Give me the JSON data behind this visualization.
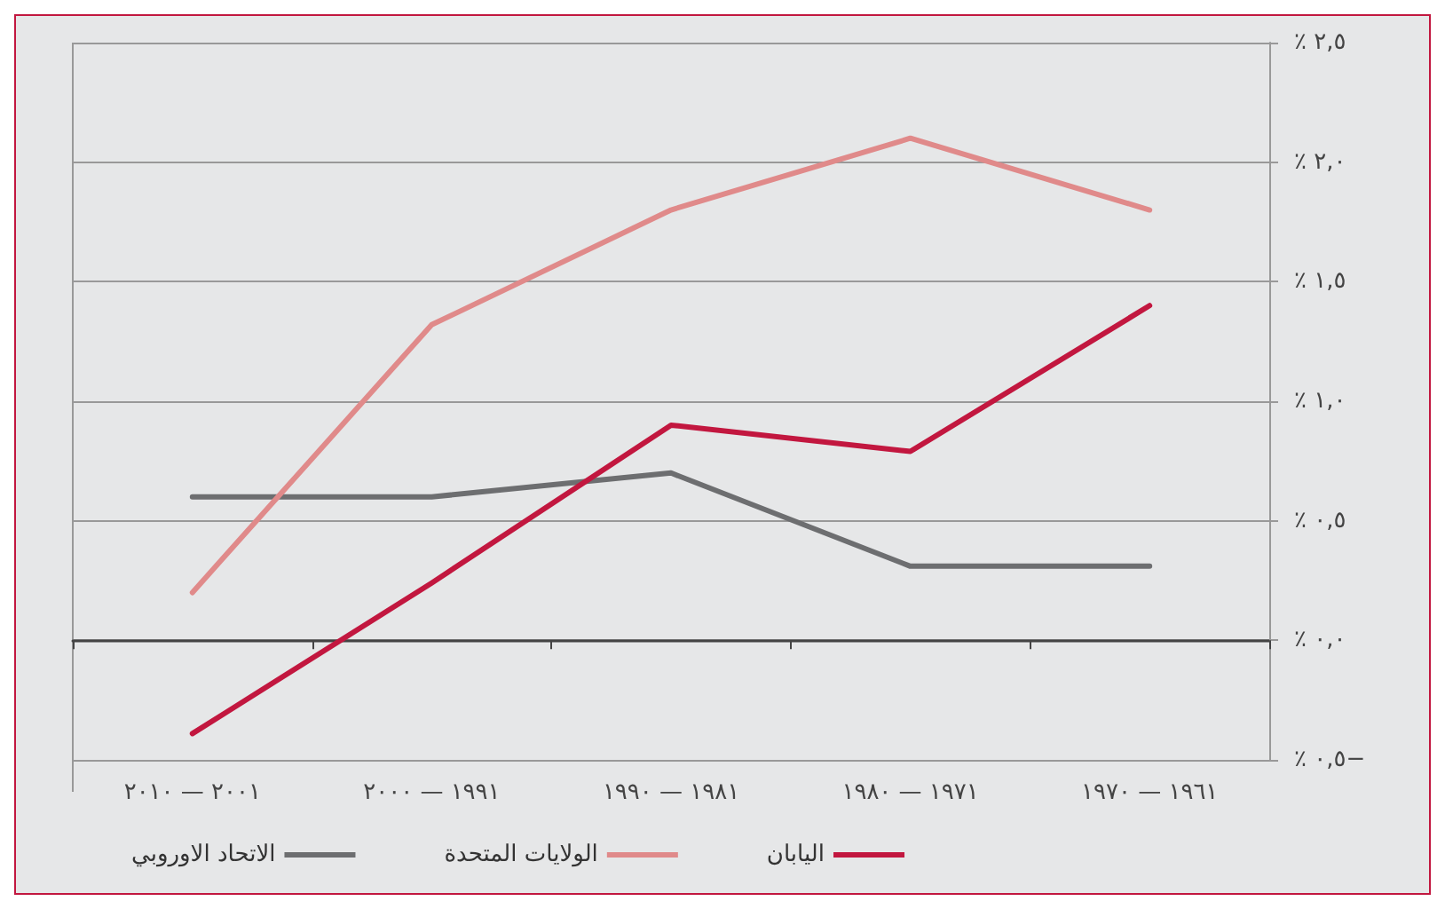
{
  "chart_data": {
    "type": "line",
    "categories": [
      "٢٠٠١ — ٢٠١٠",
      "١٩٩١ — ٢٠٠٠",
      "١٩٨١ — ١٩٩٠",
      "١٩٧١ — ١٩٨٠",
      "١٩٦١ — ١٩٧٠"
    ],
    "series": [
      {
        "name": "الاتحاد الاوروبي",
        "color": "#6d6e70",
        "values": [
          0.6,
          0.6,
          0.7,
          0.31,
          0.31
        ]
      },
      {
        "name": "الولايات المتحدة",
        "color": "#e08a8a",
        "values": [
          0.2,
          1.32,
          1.8,
          2.1,
          1.8
        ]
      },
      {
        "name": "اليابان",
        "color": "#c2173f",
        "values": [
          -0.39,
          0.24,
          0.9,
          0.79,
          1.4
        ]
      }
    ],
    "ylim": [
      -0.5,
      2.5
    ],
    "yticks": [
      {
        "value": -0.5,
        "label": "٪ ٠,٥−"
      },
      {
        "value": 0,
        "label": "٪ ٠,٠"
      },
      {
        "value": 0.5,
        "label": "٪ ٠,٥"
      },
      {
        "value": 1,
        "label": "٪ ١,٠"
      },
      {
        "value": 1.5,
        "label": "٪ ١,٥"
      },
      {
        "value": 2,
        "label": "٪ ٢,٠"
      },
      {
        "value": 2.5,
        "label": "٪ ٢,٥"
      }
    ],
    "grid": "y",
    "legend": "bottom left",
    "marker": "none",
    "line_style": "solid"
  }
}
